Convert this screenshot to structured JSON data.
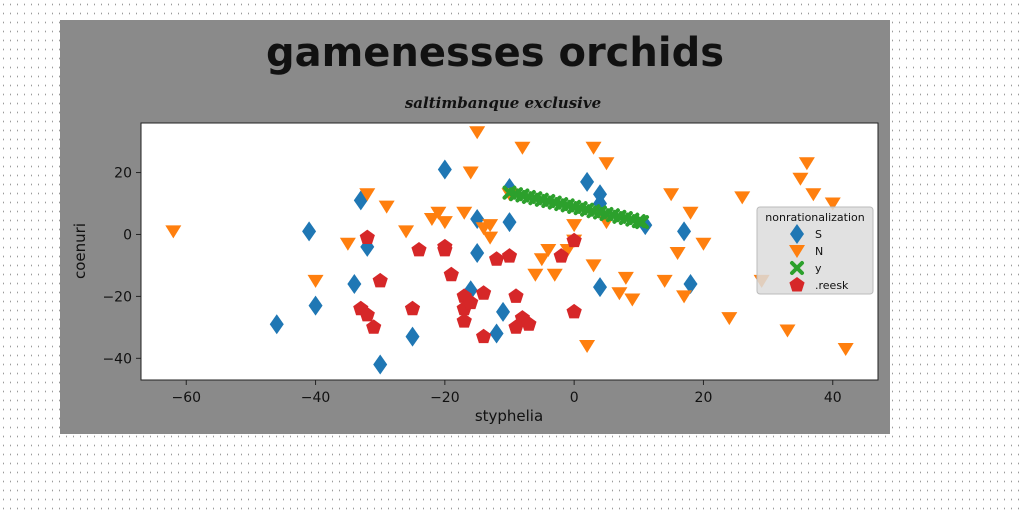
{
  "chart_data": {
    "type": "scatter",
    "title": "gamenesses orchids",
    "subtitle": "saltimbanque exclusive",
    "xlabel": "styphelia",
    "ylabel": "coenuri",
    "xlim": [
      -67,
      47
    ],
    "ylim": [
      -47,
      36
    ],
    "xticks": [
      -60,
      -40,
      -20,
      0,
      20,
      40
    ],
    "yticks": [
      -40,
      -20,
      0,
      20
    ],
    "grid": false,
    "legend": {
      "title": "nonrationalization",
      "placement": "right"
    },
    "series": [
      {
        "name": "S",
        "color": "#1f77b4",
        "marker": "diamond",
        "points": [
          [
            -46,
            -29
          ],
          [
            -41,
            1
          ],
          [
            -40,
            -23
          ],
          [
            -34,
            -16
          ],
          [
            -33,
            11
          ],
          [
            -32,
            -4
          ],
          [
            -30,
            -42
          ],
          [
            -25,
            -33
          ],
          [
            -20,
            21
          ],
          [
            -15,
            5
          ],
          [
            -15,
            -6
          ],
          [
            -16,
            -18
          ],
          [
            -12,
            -32
          ],
          [
            -11,
            -25
          ],
          [
            -10,
            4
          ],
          [
            -10,
            15
          ],
          [
            2,
            17
          ],
          [
            4,
            13
          ],
          [
            4,
            10
          ],
          [
            4,
            -17
          ],
          [
            11,
            3
          ],
          [
            17,
            1
          ],
          [
            18,
            -16
          ]
        ]
      },
      {
        "name": "N",
        "color": "#ff7f0e",
        "marker": "triangle-down",
        "points": [
          [
            -62,
            1
          ],
          [
            -40,
            -15
          ],
          [
            -35,
            -3
          ],
          [
            -32,
            13
          ],
          [
            -29,
            9
          ],
          [
            -26,
            1
          ],
          [
            -22,
            5
          ],
          [
            -21,
            7
          ],
          [
            -20,
            4
          ],
          [
            -17,
            7
          ],
          [
            -16,
            20
          ],
          [
            -15,
            33
          ],
          [
            -14,
            2
          ],
          [
            -13,
            3
          ],
          [
            -13,
            -1
          ],
          [
            -10,
            13
          ],
          [
            -8,
            28
          ],
          [
            -6,
            -13
          ],
          [
            -5,
            -8
          ],
          [
            -4,
            -5
          ],
          [
            -3,
            -13
          ],
          [
            -1,
            -5
          ],
          [
            0,
            -2
          ],
          [
            0,
            3
          ],
          [
            2,
            -36
          ],
          [
            3,
            28
          ],
          [
            3,
            -10
          ],
          [
            5,
            23
          ],
          [
            5,
            4
          ],
          [
            7,
            -19
          ],
          [
            8,
            -14
          ],
          [
            9,
            -21
          ],
          [
            14,
            -15
          ],
          [
            15,
            13
          ],
          [
            16,
            -6
          ],
          [
            17,
            -20
          ],
          [
            18,
            7
          ],
          [
            20,
            -3
          ],
          [
            24,
            -27
          ],
          [
            26,
            12
          ],
          [
            29,
            -15
          ],
          [
            33,
            -31
          ],
          [
            35,
            18
          ],
          [
            36,
            23
          ],
          [
            37,
            13
          ],
          [
            40,
            10
          ],
          [
            42,
            -37
          ]
        ]
      },
      {
        "name": "y",
        "color": "#2ca02c",
        "marker": "x",
        "points": [
          [
            -10.0,
            13.5
          ],
          [
            -9.0,
            13.0
          ],
          [
            -8.0,
            12.6
          ],
          [
            -7.0,
            12.1
          ],
          [
            -6.0,
            11.7
          ],
          [
            -5.0,
            11.2
          ],
          [
            -4.0,
            10.8
          ],
          [
            -3.0,
            10.3
          ],
          [
            -2.0,
            9.8
          ],
          [
            -1.0,
            9.4
          ],
          [
            0.0,
            8.9
          ],
          [
            1.0,
            8.5
          ],
          [
            2.0,
            8.0
          ],
          [
            3.0,
            7.5
          ],
          [
            4.0,
            7.1
          ],
          [
            5.0,
            6.6
          ],
          [
            6.0,
            6.2
          ],
          [
            7.0,
            5.7
          ],
          [
            8.0,
            5.3
          ],
          [
            9.0,
            4.8
          ],
          [
            10.0,
            4.3
          ],
          [
            10.5,
            4.0
          ]
        ]
      },
      {
        "name": ".reesk",
        "color": "#d62728",
        "marker": "pentagon",
        "points": [
          [
            -32,
            -1
          ],
          [
            -33,
            -24
          ],
          [
            -32,
            -26
          ],
          [
            -30,
            -15
          ],
          [
            -31,
            -30
          ],
          [
            -25,
            -24
          ],
          [
            -24,
            -5
          ],
          [
            -20,
            -5
          ],
          [
            -20,
            -4
          ],
          [
            -19,
            -13
          ],
          [
            -17,
            -20
          ],
          [
            -17,
            -24
          ],
          [
            -17,
            -28
          ],
          [
            -16,
            -22
          ],
          [
            -14,
            -33
          ],
          [
            -14,
            -19
          ],
          [
            -12,
            -8
          ],
          [
            -10,
            -7
          ],
          [
            -9,
            -20
          ],
          [
            -9,
            -30
          ],
          [
            -8,
            -27
          ],
          [
            -7,
            -29
          ],
          [
            -2,
            -7
          ],
          [
            0,
            -2
          ],
          [
            0,
            -25
          ]
        ]
      }
    ]
  }
}
